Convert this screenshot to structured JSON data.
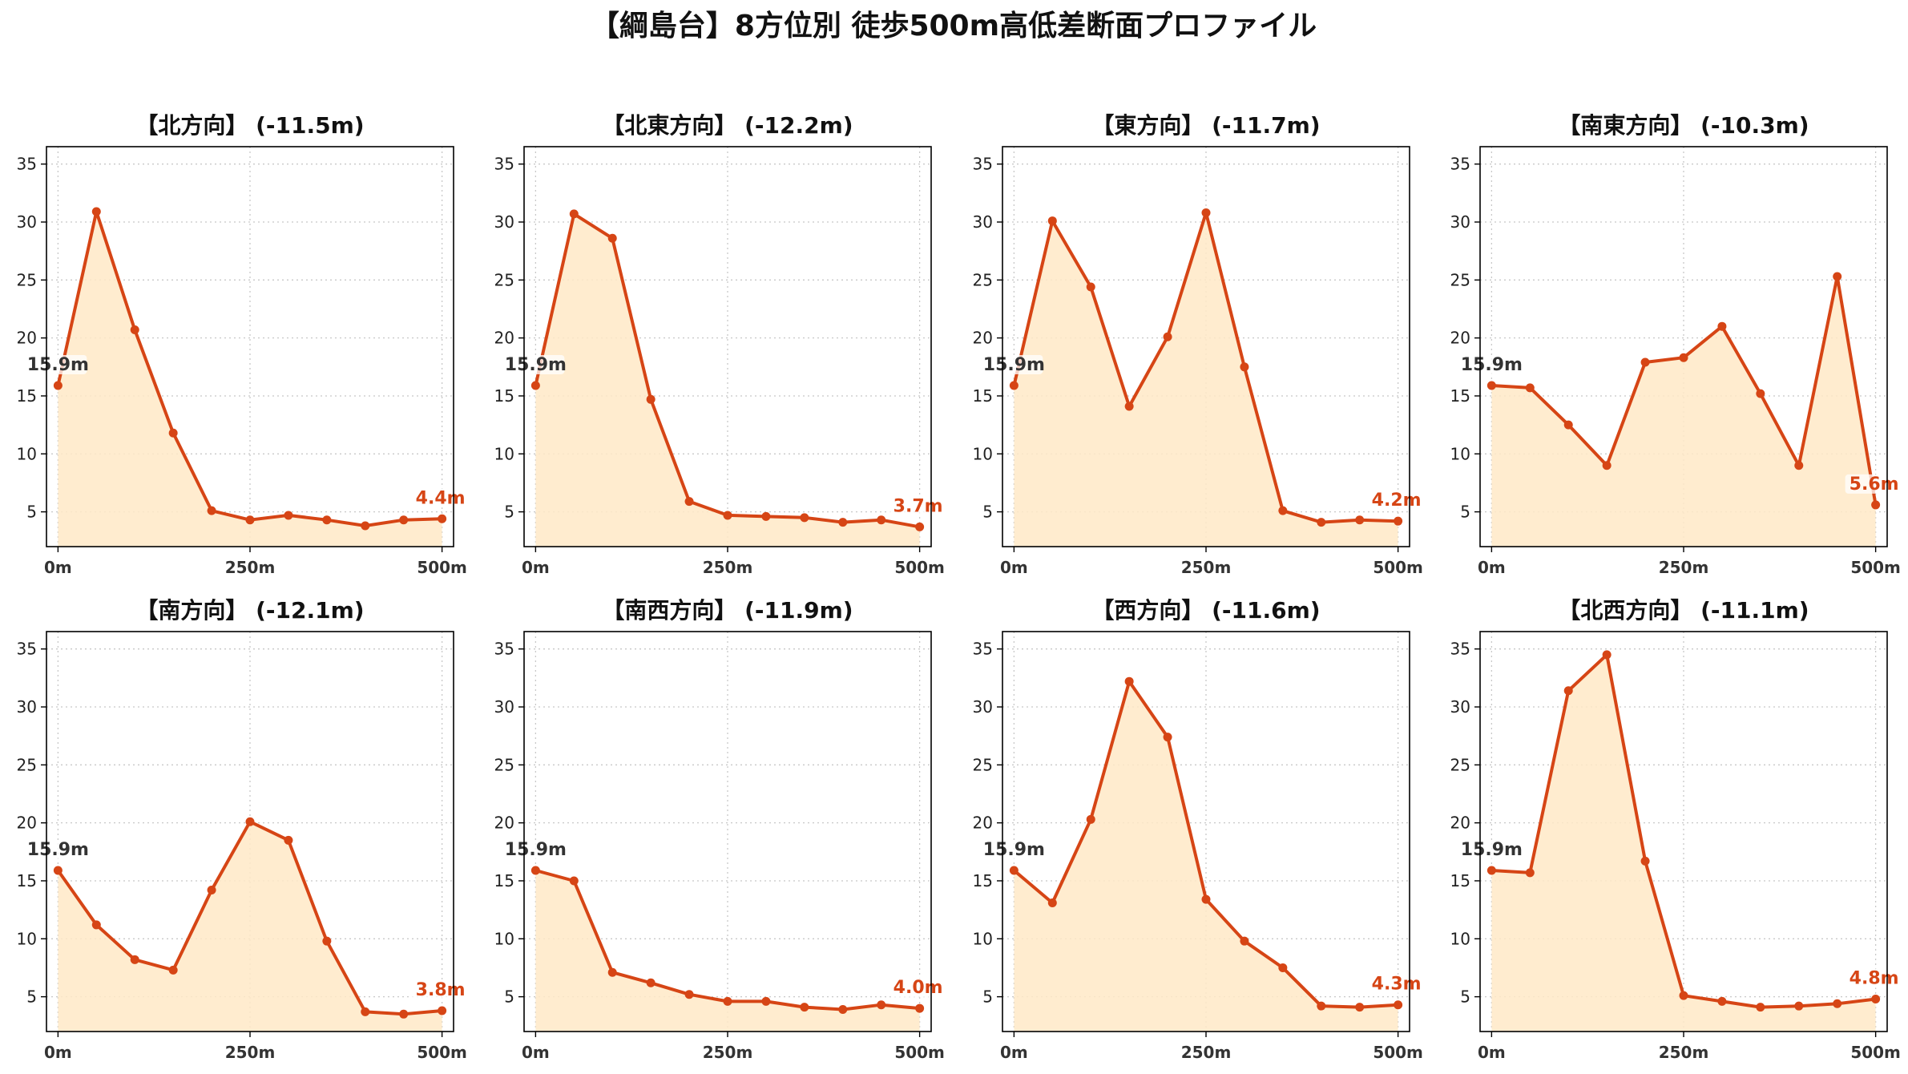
{
  "title": "【綱島台】8方位別 徒歩500m高低差断面プロファイル",
  "colors": {
    "line": "#d64515",
    "fill": "#ffe9c7",
    "start_label": "#333333",
    "end_label": "#d64515"
  },
  "chart_data": [
    {
      "type": "line",
      "title": "【北方向】 (-11.5m)",
      "x": [
        0,
        50,
        100,
        150,
        200,
        250,
        300,
        350,
        400,
        450,
        500
      ],
      "y": [
        15.9,
        30.9,
        20.7,
        11.8,
        5.1,
        4.3,
        4.7,
        4.3,
        3.8,
        4.3,
        4.4
      ],
      "xticks": [
        {
          "value": 0,
          "label": "0m"
        },
        {
          "value": 250,
          "label": "250m"
        },
        {
          "value": 500,
          "label": "500m"
        }
      ],
      "yticks": [
        5,
        10,
        15,
        20,
        25,
        30,
        35
      ],
      "xlim": [
        -15,
        515
      ],
      "ylim": [
        2,
        36.5
      ],
      "start_label": "15.9m",
      "end_label": "4.4m",
      "grid": true
    },
    {
      "type": "line",
      "title": "【北東方向】 (-12.2m)",
      "x": [
        0,
        50,
        100,
        150,
        200,
        250,
        300,
        350,
        400,
        450,
        500
      ],
      "y": [
        15.9,
        30.7,
        28.6,
        14.7,
        5.9,
        4.7,
        4.6,
        4.5,
        4.1,
        4.3,
        3.7
      ],
      "xticks": [
        {
          "value": 0,
          "label": "0m"
        },
        {
          "value": 250,
          "label": "250m"
        },
        {
          "value": 500,
          "label": "500m"
        }
      ],
      "yticks": [
        5,
        10,
        15,
        20,
        25,
        30,
        35
      ],
      "xlim": [
        -15,
        515
      ],
      "ylim": [
        2,
        36.5
      ],
      "start_label": "15.9m",
      "end_label": "3.7m",
      "grid": true
    },
    {
      "type": "line",
      "title": "【東方向】 (-11.7m)",
      "x": [
        0,
        50,
        100,
        150,
        200,
        250,
        300,
        350,
        400,
        450,
        500
      ],
      "y": [
        15.9,
        30.1,
        24.4,
        14.1,
        20.1,
        30.8,
        17.5,
        5.1,
        4.1,
        4.3,
        4.2
      ],
      "xticks": [
        {
          "value": 0,
          "label": "0m"
        },
        {
          "value": 250,
          "label": "250m"
        },
        {
          "value": 500,
          "label": "500m"
        }
      ],
      "yticks": [
        5,
        10,
        15,
        20,
        25,
        30,
        35
      ],
      "xlim": [
        -15,
        515
      ],
      "ylim": [
        2,
        36.5
      ],
      "start_label": "15.9m",
      "end_label": "4.2m",
      "grid": true
    },
    {
      "type": "line",
      "title": "【南東方向】 (-10.3m)",
      "x": [
        0,
        50,
        100,
        150,
        200,
        250,
        300,
        350,
        400,
        450,
        500
      ],
      "y": [
        15.9,
        15.7,
        12.5,
        9.0,
        17.9,
        18.3,
        21.0,
        15.2,
        9.0,
        25.3,
        5.6
      ],
      "xticks": [
        {
          "value": 0,
          "label": "0m"
        },
        {
          "value": 250,
          "label": "250m"
        },
        {
          "value": 500,
          "label": "500m"
        }
      ],
      "yticks": [
        5,
        10,
        15,
        20,
        25,
        30,
        35
      ],
      "xlim": [
        -15,
        515
      ],
      "ylim": [
        2,
        36.5
      ],
      "start_label": "15.9m",
      "end_label": "5.6m",
      "grid": true
    },
    {
      "type": "line",
      "title": "【南方向】 (-12.1m)",
      "x": [
        0,
        50,
        100,
        150,
        200,
        250,
        300,
        350,
        400,
        450,
        500
      ],
      "y": [
        15.9,
        11.2,
        8.2,
        7.3,
        14.2,
        20.1,
        18.5,
        9.8,
        3.7,
        3.5,
        3.8
      ],
      "xticks": [
        {
          "value": 0,
          "label": "0m"
        },
        {
          "value": 250,
          "label": "250m"
        },
        {
          "value": 500,
          "label": "500m"
        }
      ],
      "yticks": [
        5,
        10,
        15,
        20,
        25,
        30,
        35
      ],
      "xlim": [
        -15,
        515
      ],
      "ylim": [
        2,
        36.5
      ],
      "start_label": "15.9m",
      "end_label": "3.8m",
      "grid": true
    },
    {
      "type": "line",
      "title": "【南西方向】 (-11.9m)",
      "x": [
        0,
        50,
        100,
        150,
        200,
        250,
        300,
        350,
        400,
        450,
        500
      ],
      "y": [
        15.9,
        15.0,
        7.1,
        6.2,
        5.2,
        4.6,
        4.6,
        4.1,
        3.9,
        4.3,
        4.0
      ],
      "xticks": [
        {
          "value": 0,
          "label": "0m"
        },
        {
          "value": 250,
          "label": "250m"
        },
        {
          "value": 500,
          "label": "500m"
        }
      ],
      "yticks": [
        5,
        10,
        15,
        20,
        25,
        30,
        35
      ],
      "xlim": [
        -15,
        515
      ],
      "ylim": [
        2,
        36.5
      ],
      "start_label": "15.9m",
      "end_label": "4.0m",
      "grid": true
    },
    {
      "type": "line",
      "title": "【西方向】 (-11.6m)",
      "x": [
        0,
        50,
        100,
        150,
        200,
        250,
        300,
        350,
        400,
        450,
        500
      ],
      "y": [
        15.9,
        13.1,
        20.3,
        32.2,
        27.4,
        13.4,
        9.8,
        7.5,
        4.2,
        4.1,
        4.3
      ],
      "xticks": [
        {
          "value": 0,
          "label": "0m"
        },
        {
          "value": 250,
          "label": "250m"
        },
        {
          "value": 500,
          "label": "500m"
        }
      ],
      "yticks": [
        5,
        10,
        15,
        20,
        25,
        30,
        35
      ],
      "xlim": [
        -15,
        515
      ],
      "ylim": [
        2,
        36.5
      ],
      "start_label": "15.9m",
      "end_label": "4.3m",
      "grid": true
    },
    {
      "type": "line",
      "title": "【北西方向】 (-11.1m)",
      "x": [
        0,
        50,
        100,
        150,
        200,
        250,
        300,
        350,
        400,
        450,
        500
      ],
      "y": [
        15.9,
        15.7,
        31.4,
        34.5,
        16.7,
        5.1,
        4.6,
        4.1,
        4.2,
        4.4,
        4.8
      ],
      "xticks": [
        {
          "value": 0,
          "label": "0m"
        },
        {
          "value": 250,
          "label": "250m"
        },
        {
          "value": 500,
          "label": "500m"
        }
      ],
      "yticks": [
        5,
        10,
        15,
        20,
        25,
        30,
        35
      ],
      "xlim": [
        -15,
        515
      ],
      "ylim": [
        2,
        36.5
      ],
      "start_label": "15.9m",
      "end_label": "4.8m",
      "grid": true
    }
  ]
}
